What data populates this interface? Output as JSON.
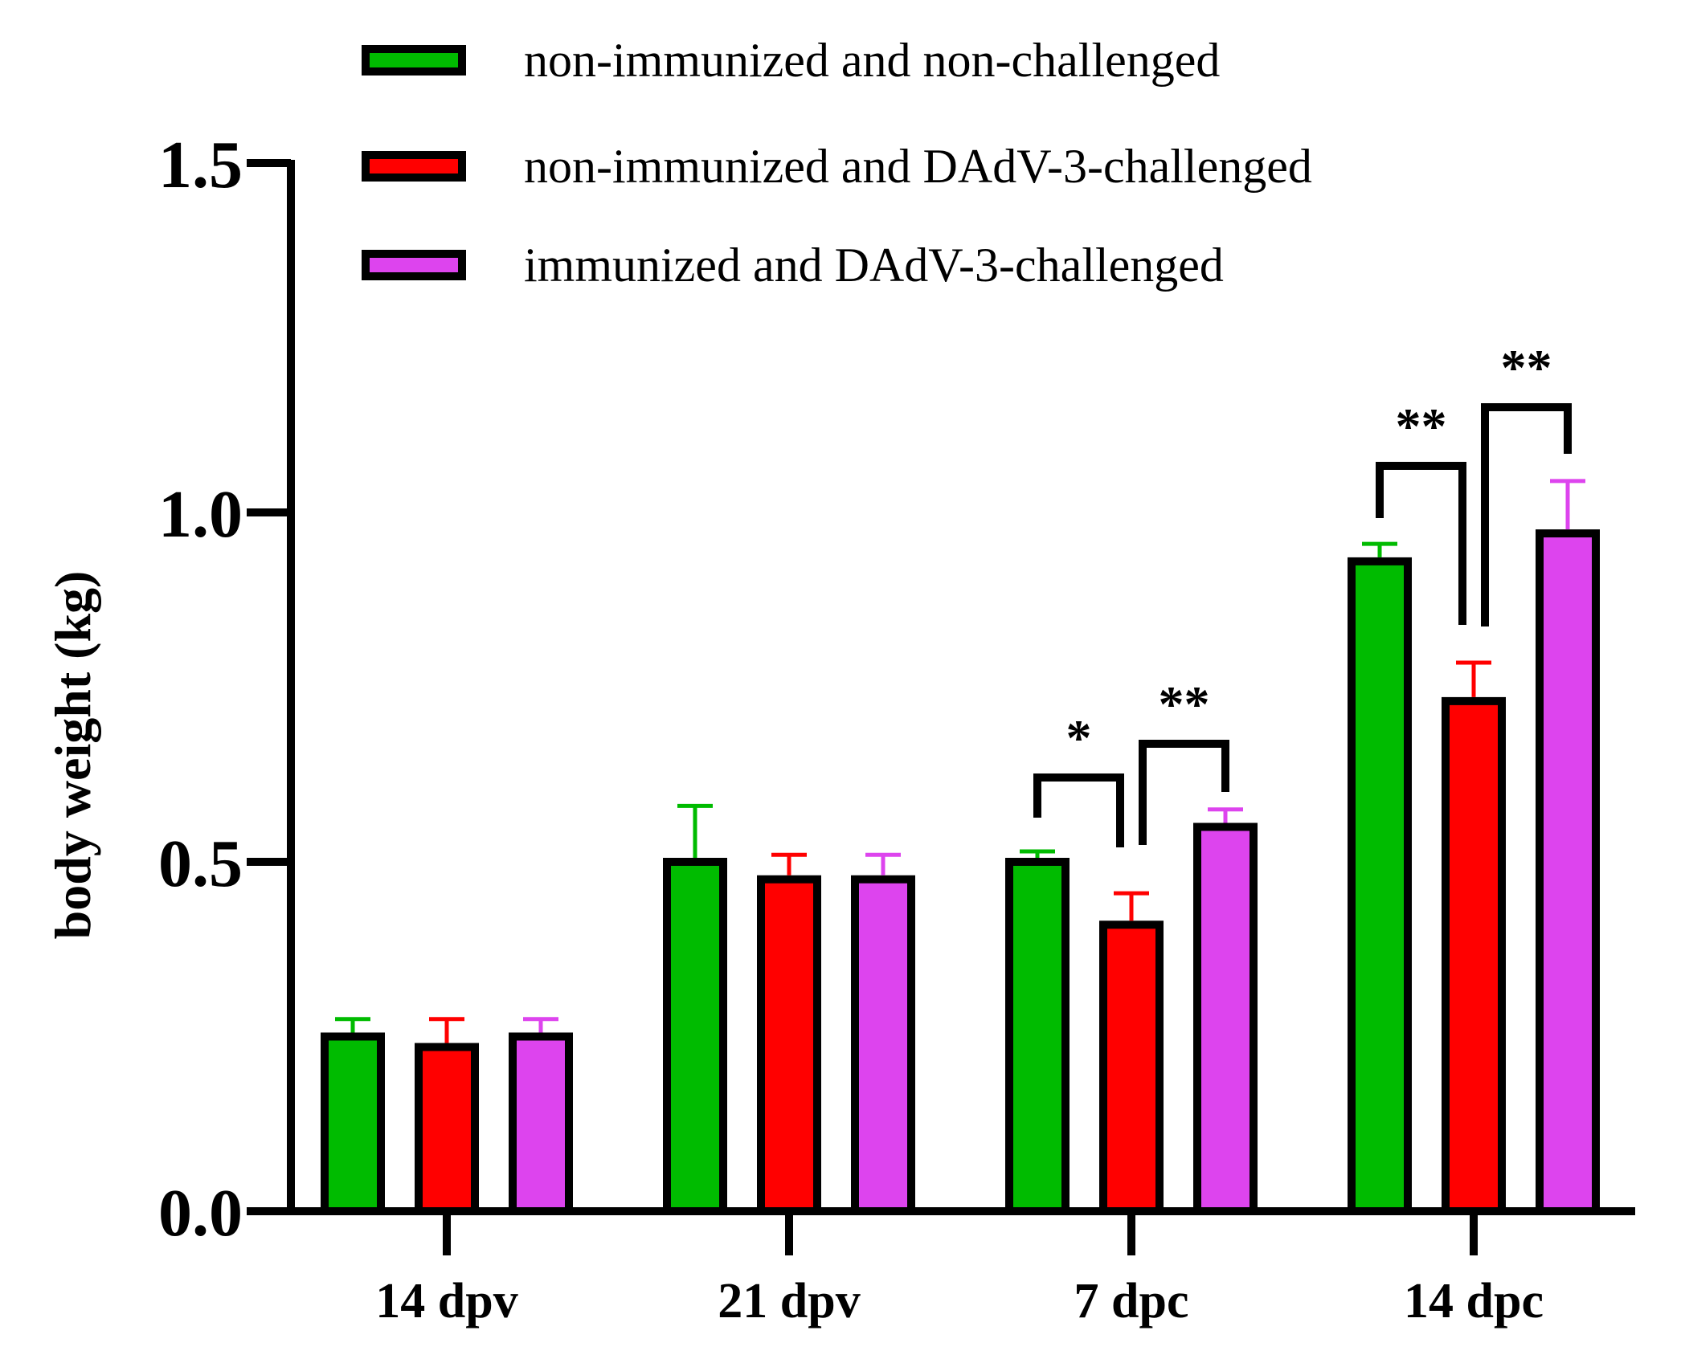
{
  "chart_data": {
    "type": "bar",
    "ylabel": "body weight (kg)",
    "xlabel": "",
    "ylim": [
      0.0,
      1.5
    ],
    "yticks": [
      "0.0",
      "0.5",
      "1.0",
      "1.5"
    ],
    "ytick_values": [
      0.0,
      0.5,
      1.0,
      1.5
    ],
    "legend_position": "top",
    "categories": [
      "14 dpv",
      "21 dpv",
      "7 dpc",
      "14 dpc"
    ],
    "series": [
      {
        "name": "non-immunized and non-challenged",
        "color": "#00bb00",
        "values": [
          0.25,
          0.5,
          0.5,
          0.93
        ],
        "errors": [
          0.025,
          0.08,
          0.015,
          0.025
        ]
      },
      {
        "name": "non-immunized and DAdV-3-challenged",
        "color": "#ff0000",
        "values": [
          0.235,
          0.475,
          0.41,
          0.73
        ],
        "errors": [
          0.04,
          0.035,
          0.045,
          0.055
        ]
      },
      {
        "name": "immunized and DAdV-3-challenged",
        "color": "#dd44ee",
        "values": [
          0.25,
          0.475,
          0.55,
          0.97
        ],
        "errors": [
          0.025,
          0.035,
          0.025,
          0.075
        ]
      }
    ],
    "significance": [
      {
        "category": 2,
        "from_series": 0,
        "to_series": 1,
        "label": "*"
      },
      {
        "category": 2,
        "from_series": 1,
        "to_series": 2,
        "label": "**"
      },
      {
        "category": 3,
        "from_series": 0,
        "to_series": 1,
        "label": "**"
      },
      {
        "category": 3,
        "from_series": 1,
        "to_series": 2,
        "label": "**"
      }
    ]
  }
}
